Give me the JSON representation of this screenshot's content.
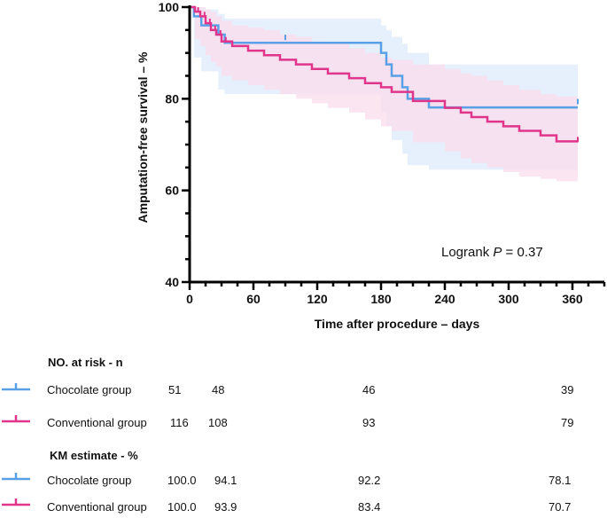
{
  "chart_data": {
    "type": "line",
    "ylabel": "Amputation-free survival – %",
    "xlabel": "Time after procedure – days",
    "xlim": [
      0,
      390
    ],
    "ylim": [
      40,
      100
    ],
    "xticks": [
      0,
      60,
      120,
      180,
      240,
      300,
      360
    ],
    "yticks": [
      40,
      60,
      80,
      100
    ],
    "annotation": {
      "prefix": "Logrank ",
      "p": "P",
      "suffix": " = 0.37"
    },
    "series": [
      {
        "name": "Chocolate group",
        "color": "#5aa0e6",
        "ci_fill": "#dcebfb",
        "x": [
          0,
          4,
          4,
          11,
          11,
          27,
          27,
          33,
          33,
          180,
          180,
          185,
          185,
          190,
          190,
          200,
          200,
          205,
          205,
          225,
          225,
          240,
          240,
          365
        ],
        "y": [
          100,
          100,
          98,
          98,
          96,
          96,
          94,
          94,
          92.2,
          92.2,
          90,
          90,
          87.5,
          87.5,
          85,
          85,
          82.5,
          82.5,
          80,
          80,
          78.1,
          78.1,
          78.1,
          78.1
        ],
        "ci_upper": [
          100,
          100,
          100,
          100,
          99.5,
          99.5,
          98.5,
          98.5,
          97.5,
          97.5,
          96,
          96,
          95,
          95,
          93.5,
          93.5,
          92,
          92,
          90,
          90,
          87.5,
          87.5,
          87.5,
          87.5
        ],
        "ci_lower": [
          100,
          100,
          89,
          89,
          86,
          86,
          82,
          82,
          81,
          81,
          77,
          77,
          74,
          74,
          71,
          71,
          68,
          68,
          65.5,
          65.5,
          64.5,
          64.5,
          64.5,
          64.5
        ],
        "censor_x": [
          90,
          365
        ],
        "censor_y": [
          93,
          79
        ]
      },
      {
        "name": "Conventional group",
        "color": "#e0358a",
        "ci_fill": "#f9dcec",
        "x": [
          0,
          5,
          5,
          10,
          10,
          15,
          15,
          20,
          20,
          25,
          25,
          30,
          30,
          40,
          40,
          55,
          55,
          70,
          70,
          85,
          85,
          100,
          100,
          115,
          115,
          130,
          130,
          150,
          150,
          165,
          165,
          180,
          180,
          190,
          190,
          210,
          210,
          240,
          240,
          255,
          255,
          265,
          265,
          280,
          280,
          295,
          295,
          310,
          310,
          330,
          330,
          345,
          345,
          365
        ],
        "y": [
          100,
          100,
          99,
          99,
          98,
          98,
          96.5,
          96.5,
          95,
          95,
          94,
          94,
          92.5,
          92.5,
          91.5,
          91.5,
          90.5,
          90.5,
          89.5,
          89.5,
          88.5,
          88.5,
          87.5,
          87.5,
          86.5,
          86.5,
          85.5,
          85.5,
          84.5,
          84.5,
          83.4,
          83.4,
          82.5,
          82.5,
          81.5,
          81.5,
          79.5,
          79.5,
          78,
          78,
          77,
          77,
          76,
          76,
          75,
          75,
          74,
          74,
          73,
          73,
          72,
          72,
          70.7,
          70.7
        ],
        "ci_upper": [
          100,
          100,
          100,
          100,
          100,
          100,
          99.5,
          99.5,
          99,
          99,
          98,
          98,
          97,
          97,
          96,
          96,
          95.5,
          95.5,
          95,
          95,
          94,
          94,
          93.5,
          93.5,
          92.5,
          92.5,
          92,
          92,
          91,
          91,
          90,
          90,
          89,
          89,
          88.5,
          88.5,
          87.5,
          87.5,
          86.5,
          86.5,
          85.5,
          85.5,
          85,
          85,
          84,
          84,
          83,
          83,
          82,
          82,
          81,
          81,
          80.5,
          80.5
        ],
        "ci_lower": [
          100,
          100,
          93,
          93,
          91.5,
          91.5,
          89.5,
          89.5,
          88,
          88,
          87,
          87,
          85,
          85,
          84,
          84,
          83,
          83,
          82,
          82,
          81,
          81,
          80,
          80,
          79,
          79,
          78,
          78,
          77,
          77,
          75.5,
          75.5,
          74,
          74,
          73,
          73,
          70.5,
          70.5,
          68.5,
          68.5,
          67,
          67,
          66,
          66,
          65,
          65,
          64,
          64,
          63,
          63,
          62.5,
          62.5,
          62,
          62
        ],
        "censor_x": [
          8,
          14,
          19,
          24,
          29,
          34,
          365
        ],
        "censor_y": [
          99,
          98,
          96.5,
          95,
          94,
          92.5,
          70.7
        ]
      }
    ]
  },
  "risk_table": {
    "header": "NO. at risk - n",
    "rows": [
      {
        "label": "Chocolate group",
        "values": [
          "51",
          "48",
          "46",
          "39"
        ]
      },
      {
        "label": "Conventional group",
        "values": [
          "116",
          "108",
          "93",
          "79"
        ]
      }
    ]
  },
  "km_table": {
    "header": "KM estimate - %",
    "rows": [
      {
        "label": "Chocolate group",
        "values": [
          "100.0",
          "94.1",
          "92.2",
          "78.1"
        ]
      },
      {
        "label": "Conventional group",
        "values": [
          "100.0",
          "93.9",
          "83.4",
          "70.7"
        ]
      }
    ]
  }
}
